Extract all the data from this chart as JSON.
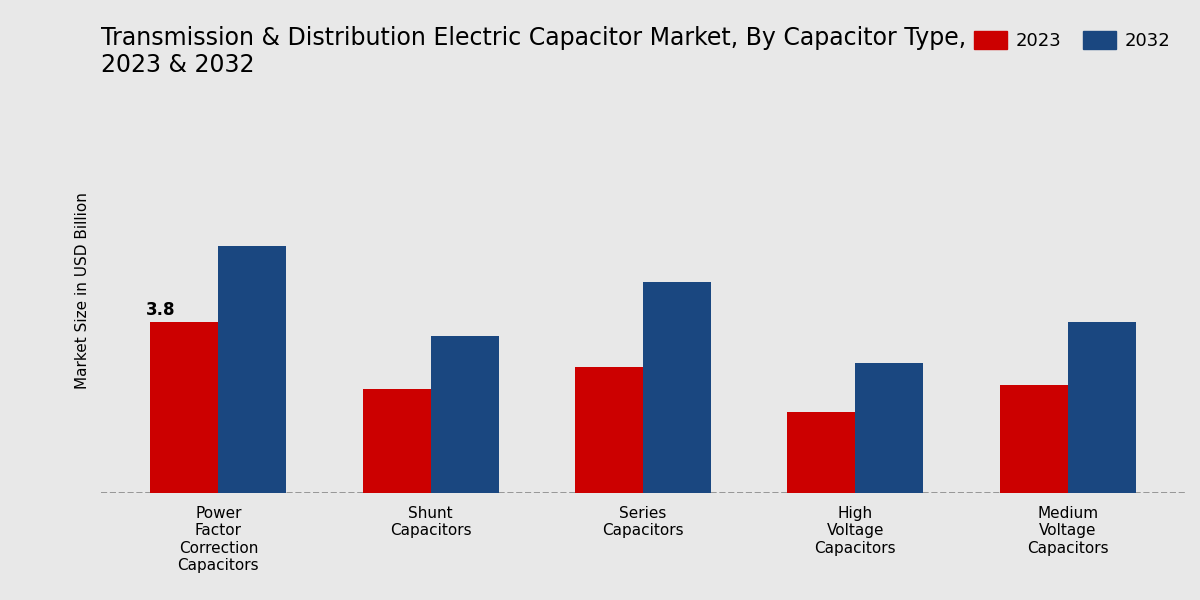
{
  "title": "Transmission & Distribution Electric Capacitor Market, By Capacitor Type,\n2023 & 2032",
  "ylabel": "Market Size in USD Billion",
  "categories": [
    "Power\nFactor\nCorrection\nCapacitors",
    "Shunt\nCapacitors",
    "Series\nCapacitors",
    "High\nVoltage\nCapacitors",
    "Medium\nVoltage\nCapacitors"
  ],
  "values_2023": [
    3.8,
    2.3,
    2.8,
    1.8,
    2.4
  ],
  "values_2032": [
    5.5,
    3.5,
    4.7,
    2.9,
    3.8
  ],
  "color_2023": "#cc0000",
  "color_2032": "#1a4780",
  "annotation_value": "3.8",
  "annotation_category_idx": 0,
  "bar_width": 0.32,
  "background_color": "#e8e8e8",
  "title_fontsize": 17,
  "label_fontsize": 11,
  "tick_fontsize": 11,
  "legend_fontsize": 13,
  "annotation_fontsize": 12,
  "ylim": [
    0,
    9
  ],
  "legend_labels": [
    "2023",
    "2032"
  ]
}
